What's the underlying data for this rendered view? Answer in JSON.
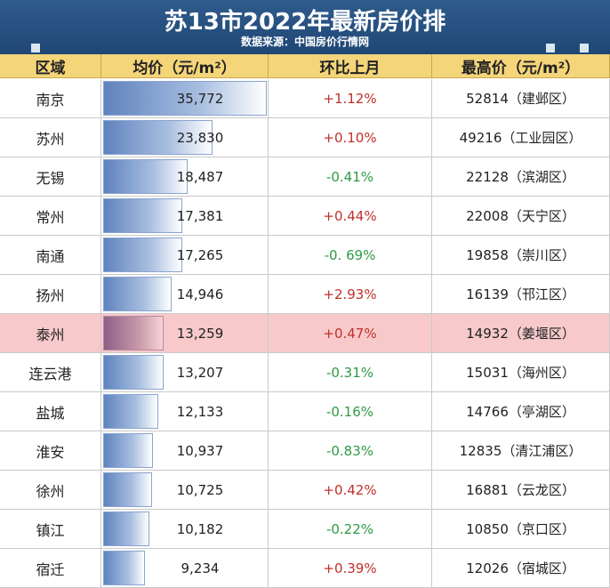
{
  "header": {
    "title": "苏13市2022年最新房价排",
    "subtitle": "数据来源：中国房价行情网"
  },
  "columns": [
    "区域",
    "均价（元/m²）",
    "环比上月",
    "最高价（元/m²）"
  ],
  "colors": {
    "banner": "#2f5b8c",
    "header": "#f4d57a",
    "highlight_row": "#f7c9cb",
    "positive": "#c0302a",
    "negative": "#2e9a45",
    "bar": "#5f83be"
  },
  "chart_data": {
    "type": "table",
    "categories": [
      "南京",
      "苏州",
      "无锡",
      "常州",
      "南通",
      "扬州",
      "泰州",
      "连云港",
      "盐城",
      "淮安",
      "徐州",
      "镇江",
      "宿迁"
    ],
    "values": [
      35772,
      23830,
      18487,
      17381,
      17265,
      14946,
      13259,
      13207,
      12133,
      10937,
      10725,
      10182,
      9234
    ],
    "highlight": "泰州",
    "rows": [
      {
        "city": "南京",
        "price": 35772,
        "price_text": "35,772",
        "mom": "+1.12%",
        "mom_sign": "pos",
        "high": "52814（建邺区）"
      },
      {
        "city": "苏州",
        "price": 23830,
        "price_text": "23,830",
        "mom": "+0.10%",
        "mom_sign": "pos",
        "high": "49216（工业园区）"
      },
      {
        "city": "无锡",
        "price": 18487,
        "price_text": "18,487",
        "mom": "-0.41%",
        "mom_sign": "neg",
        "high": "22128（滨湖区）"
      },
      {
        "city": "常州",
        "price": 17381,
        "price_text": "17,381",
        "mom": "+0.44%",
        "mom_sign": "pos",
        "high": "22008（天宁区）"
      },
      {
        "city": "南通",
        "price": 17265,
        "price_text": "17,265",
        "mom": "-0. 69%",
        "mom_sign": "neg",
        "high": "19858（崇川区）"
      },
      {
        "city": "扬州",
        "price": 14946,
        "price_text": "14,946",
        "mom": "+2.93%",
        "mom_sign": "pos",
        "high": "16139（邗江区）"
      },
      {
        "city": "泰州",
        "price": 13259,
        "price_text": "13,259",
        "mom": "+0.47%",
        "mom_sign": "pos",
        "high": "14932（姜堰区）"
      },
      {
        "city": "连云港",
        "price": 13207,
        "price_text": "13,207",
        "mom": "-0.31%",
        "mom_sign": "neg",
        "high": "15031（海州区）"
      },
      {
        "city": "盐城",
        "price": 12133,
        "price_text": "12,133",
        "mom": "-0.16%",
        "mom_sign": "neg",
        "high": "14766（亭湖区）"
      },
      {
        "city": "淮安",
        "price": 10937,
        "price_text": "10,937",
        "mom": "-0.83%",
        "mom_sign": "neg",
        "high": "12835（清江浦区）"
      },
      {
        "city": "徐州",
        "price": 10725,
        "price_text": "10,725",
        "mom": "+0.42%",
        "mom_sign": "pos",
        "high": "16881（云龙区）"
      },
      {
        "city": "镇江",
        "price": 10182,
        "price_text": "10,182",
        "mom": "-0.22%",
        "mom_sign": "neg",
        "high": "10850（京口区）"
      },
      {
        "city": "宿迁",
        "price": 9234,
        "price_text": "9,234",
        "mom": "+0.39%",
        "mom_sign": "pos",
        "high": "12026（宿城区）"
      }
    ]
  }
}
